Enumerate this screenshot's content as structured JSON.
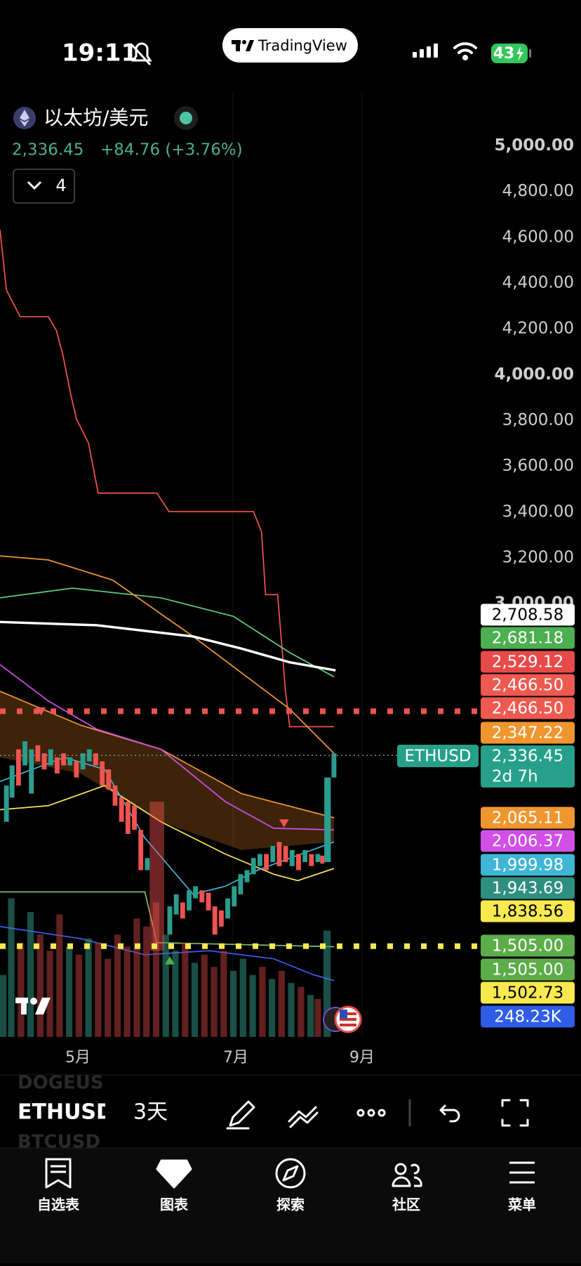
{
  "status_bar": {
    "time": "19:11",
    "app_pill": "TradingView",
    "battery": "43"
  },
  "symbol": {
    "name": "以太坊/美元",
    "price": "2,336.45",
    "change": "+84.76 (+3.76%)",
    "indicator_count": "4"
  },
  "chart_data": {
    "type": "candlestick",
    "ylim": [
      1106,
      5232
    ],
    "yticks": [
      {
        "value": 5000,
        "label": "5,000.00"
      },
      {
        "value": 4800,
        "label": "4,800.00"
      },
      {
        "value": 4600,
        "label": "4,600.00"
      },
      {
        "value": 4400,
        "label": "4,400.00"
      },
      {
        "value": 4200,
        "label": "4,200.00"
      },
      {
        "value": 4000,
        "label": "4,000.00"
      },
      {
        "value": 3800,
        "label": "3,800.00"
      },
      {
        "value": 3600,
        "label": "3,600.00"
      },
      {
        "value": 3400,
        "label": "3,400.00"
      },
      {
        "value": 3200,
        "label": "3,200.00"
      },
      {
        "value": 3000,
        "label": "3,000.00"
      }
    ],
    "x_labels": [
      "5月",
      "7月",
      "9月"
    ],
    "price_tags": [
      {
        "value": 2708.58,
        "label": "2,708.58",
        "color": "#ffffff",
        "text_color": "#000000"
      },
      {
        "value": 2681.18,
        "label": "2,681.18",
        "color": "#4caf50",
        "text_color": "#ffffff"
      },
      {
        "value": 2529.12,
        "label": "2,529.12",
        "color": "#e84a4a",
        "text_color": "#ffffff"
      },
      {
        "value": 2466.5,
        "label": "2,466.50",
        "color": "#ef5a50",
        "text_color": "#ffffff"
      },
      {
        "value": 2466.5,
        "label": "2,466.50",
        "color": "#ef5a50",
        "text_color": "#ffffff"
      },
      {
        "value": 2347.22,
        "label": "2,347.22",
        "color": "#f0962e",
        "text_color": "#ffffff"
      },
      {
        "value": 2336.45,
        "label": "2,336.45",
        "color": "#26a08a",
        "text_color": "#ffffff",
        "countdown": "2d 7h",
        "symbol_tag": "ETHUSD"
      },
      {
        "value": 2065.11,
        "label": "2,065.11",
        "color": "#f0962e",
        "text_color": "#ffffff"
      },
      {
        "value": 2006.37,
        "label": "2,006.37",
        "color": "#d24fe6",
        "text_color": "#ffffff"
      },
      {
        "value": 1999.98,
        "label": "1,999.98",
        "color": "#3fb6d6",
        "text_color": "#ffffff"
      },
      {
        "value": 1943.69,
        "label": "1,943.69",
        "color": "#2e8f80",
        "text_color": "#ffffff"
      },
      {
        "value": 1838.56,
        "label": "1,838.56",
        "color": "#f7e94f",
        "text_color": "#000000"
      },
      {
        "value": 1505,
        "label": "1,505.00",
        "color": "#5cad4a",
        "text_color": "#ffffff"
      },
      {
        "value": 1505,
        "label": "1,505.00",
        "color": "#5cad4a",
        "text_color": "#ffffff"
      },
      {
        "value": 1502.73,
        "label": "1,502.73",
        "color": "#f7e94f",
        "text_color": "#000000"
      },
      {
        "value": 248230,
        "label": "248.23K",
        "color": "#2f5de6",
        "text_color": "#ffffff"
      }
    ]
  },
  "toolbar": {
    "ghost_above": "DOGEUS",
    "symbol": "ETHUSD",
    "ghost_below": "BTCUSD",
    "interval": "3天"
  },
  "nav": [
    "自选表",
    "图表",
    "探索",
    "社区",
    "菜单"
  ]
}
